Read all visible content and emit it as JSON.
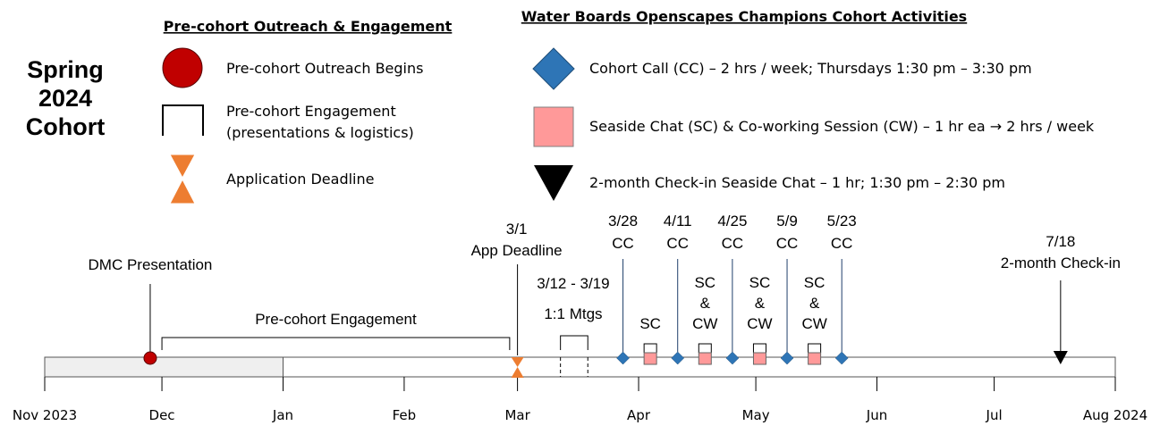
{
  "cohort_title": [
    "Spring",
    "2024",
    "Cohort"
  ],
  "legend_left": {
    "heading": "Pre-cohort Outreach & Engagement",
    "items": [
      {
        "icon": "red-circle-icon",
        "label": [
          "Pre-cohort Outreach Begins"
        ]
      },
      {
        "icon": "bracket-icon",
        "label": [
          "Pre-cohort Engagement",
          "(presentations & logistics)"
        ]
      },
      {
        "icon": "hourglass-icon",
        "label": [
          "Application Deadline"
        ]
      }
    ]
  },
  "legend_right": {
    "heading": "Water Boards Openscapes Champions Cohort Activities",
    "items": [
      {
        "icon": "blue-diamond-icon",
        "label": "Cohort Call (CC) – 2 hrs / week; Thursdays 1:30 pm – 3:30 pm"
      },
      {
        "icon": "pink-square-icon",
        "label": "Seaside Chat (SC) & Co-working Session (CW) – 1 hr ea →  2 hrs / week"
      },
      {
        "icon": "black-triangle-icon",
        "label": "2-month Check-in Seaside Chat – 1 hr; 1:30 pm – 2:30 pm"
      }
    ]
  },
  "axis": {
    "months": [
      "Nov 2023",
      "Dec",
      "Jan",
      "Feb",
      "Mar",
      "Apr",
      "May",
      "Jun",
      "Jul",
      "Aug 2024"
    ],
    "start": "2023-11-01",
    "end": "2024-08-01",
    "shaded_range": [
      "2023-11-01",
      "2024-01-01"
    ]
  },
  "colors": {
    "outreach": "#c00000",
    "deadline": "#ed7d31",
    "cohort_call": "#2e75b6",
    "seaside": "#ff9999",
    "checkin": "#000000",
    "shade": "#efefef"
  },
  "events": {
    "dmc": {
      "date": "2023-11-28",
      "label": [
        "DMC Presentation"
      ]
    },
    "engagement": {
      "start": "2023-12-01",
      "end": "2024-02-28",
      "label": "Pre-cohort Engagement"
    },
    "deadline": {
      "date": "2024-03-01",
      "label": [
        "3/1",
        "App Deadline"
      ]
    },
    "one_on_one": {
      "start": "2024-03-12",
      "end": "2024-03-19",
      "label": [
        "3/12 - 3/19",
        "1:1 Mtgs"
      ]
    },
    "cohort_calls": [
      {
        "date": "2024-03-28",
        "label": [
          "3/28",
          "CC"
        ]
      },
      {
        "date": "2024-04-11",
        "label": [
          "4/11",
          "CC"
        ]
      },
      {
        "date": "2024-04-25",
        "label": [
          "4/25",
          "CC"
        ]
      },
      {
        "date": "2024-05-09",
        "label": [
          "5/9",
          "CC"
        ]
      },
      {
        "date": "2024-05-23",
        "label": [
          "5/23",
          "CC"
        ]
      }
    ],
    "seaside_chats": [
      {
        "date": "2024-04-04",
        "label": [
          "SC"
        ]
      },
      {
        "date": "2024-04-18",
        "label": [
          "SC",
          "&",
          "CW"
        ]
      },
      {
        "date": "2024-05-02",
        "label": [
          "SC",
          "&",
          "CW"
        ]
      },
      {
        "date": "2024-05-16",
        "label": [
          "SC",
          "&",
          "CW"
        ]
      }
    ],
    "checkin": {
      "date": "2024-07-18",
      "label": [
        "7/18",
        "2-month Check-in"
      ]
    }
  }
}
